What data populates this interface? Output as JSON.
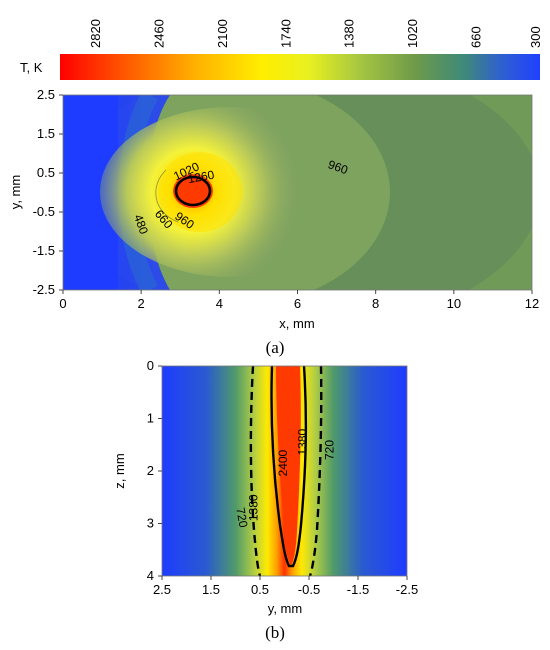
{
  "colorbar": {
    "title": "T, K",
    "ticks": [
      "2820",
      "2460",
      "2100",
      "1740",
      "1380",
      "1020",
      "660",
      "300"
    ],
    "range": [
      300,
      3000
    ],
    "colors": [
      "#ff0000",
      "#ff8000",
      "#ffe000",
      "#ffff33",
      "#b8d040",
      "#6e9a4a",
      "#3b7a8a",
      "#2040ff"
    ]
  },
  "chart_data": [
    {
      "type": "heatmap",
      "caption": "(a)",
      "xlabel": "x, mm",
      "ylabel": "y, mm",
      "xlim": [
        0,
        12
      ],
      "ylim": [
        -2.5,
        2.5
      ],
      "xticks": [
        "0",
        "2",
        "4",
        "6",
        "8",
        "10",
        "12"
      ],
      "yticks": [
        "2.5",
        "1.5",
        "0.5",
        "-0.5",
        "-1.5",
        "-2.5"
      ],
      "contour_labels": [
        {
          "text": "1020",
          "x": 3.2,
          "y": 0.45
        },
        {
          "text": "1260",
          "x": 3.55,
          "y": 0.3
        },
        {
          "text": "960",
          "x": 7.0,
          "y": 0.55
        },
        {
          "text": "480",
          "x": 1.9,
          "y": -0.85
        },
        {
          "text": "660",
          "x": 2.5,
          "y": -0.75
        },
        {
          "text": "960",
          "x": 3.05,
          "y": -0.8
        }
      ]
    },
    {
      "type": "heatmap",
      "caption": "(b)",
      "xlabel": "y, mm",
      "ylabel": "z, mm",
      "xlim": [
        2.5,
        -2.5
      ],
      "ylim": [
        4,
        0
      ],
      "xticks": [
        "2.5",
        "1.5",
        "0.5",
        "-0.5",
        "-1.5",
        "-2.5"
      ],
      "yticks": [
        "0",
        "1",
        "2",
        "3",
        "4"
      ],
      "contour_labels": [
        {
          "text": "2400",
          "x": -0.05,
          "y": 1.85
        },
        {
          "text": "1380",
          "x": -0.45,
          "y": 1.45
        },
        {
          "text": "720",
          "x": -1.0,
          "y": 1.6
        },
        {
          "text": "720",
          "x": 0.95,
          "y": 2.9
        },
        {
          "text": "1380",
          "x": 0.55,
          "y": 2.7
        }
      ]
    }
  ]
}
